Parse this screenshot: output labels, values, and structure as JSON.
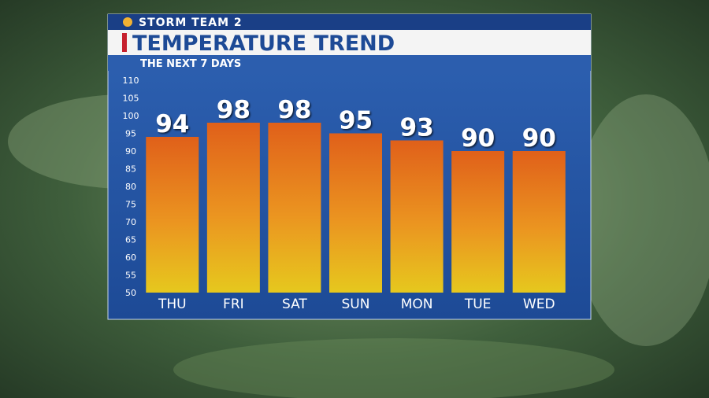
{
  "header": "STORM TEAM 2",
  "chart_data": {
    "type": "bar",
    "title": "TEMPERATURE TREND",
    "subtitle": "THE NEXT 7 DAYS",
    "categories": [
      "THU",
      "FRI",
      "SAT",
      "SUN",
      "MON",
      "TUE",
      "WED"
    ],
    "values": [
      94,
      98,
      98,
      95,
      93,
      90,
      90
    ],
    "ylim": [
      50,
      110
    ],
    "yticks": [
      50,
      55,
      60,
      65,
      70,
      75,
      80,
      85,
      90,
      95,
      100,
      105,
      110
    ],
    "data_labels": true
  }
}
